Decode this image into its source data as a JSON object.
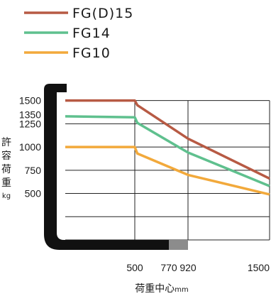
{
  "chart_data": {
    "type": "line",
    "title": "",
    "xlabel": "荷重中心",
    "xlabel_unit": "mm",
    "ylabel": "許容荷重",
    "ylabel_unit": "kg",
    "x_ticks": [
      "500",
      "770",
      "920",
      "1500"
    ],
    "y_ticks": [
      "1500",
      "1350",
      "1250",
      "1000",
      "750",
      "500"
    ],
    "xlim": [
      0,
      1500
    ],
    "ylim": [
      0,
      1650
    ],
    "legend_position": "top-left",
    "grid": true,
    "series": [
      {
        "name": "FG(D)15",
        "color": "#b75a44",
        "x": [
          0,
          500,
          520,
          920,
          1500
        ],
        "y": [
          1500,
          1500,
          1450,
          1090,
          660
        ]
      },
      {
        "name": "FG14",
        "color": "#5fc08e",
        "x": [
          0,
          500,
          520,
          920,
          1500
        ],
        "y": [
          1330,
          1320,
          1260,
          940,
          580
        ]
      },
      {
        "name": "FG10",
        "color": "#f2a93b",
        "x": [
          0,
          500,
          520,
          920,
          1500
        ],
        "y": [
          1000,
          1000,
          930,
          700,
          490
        ]
      }
    ]
  }
}
